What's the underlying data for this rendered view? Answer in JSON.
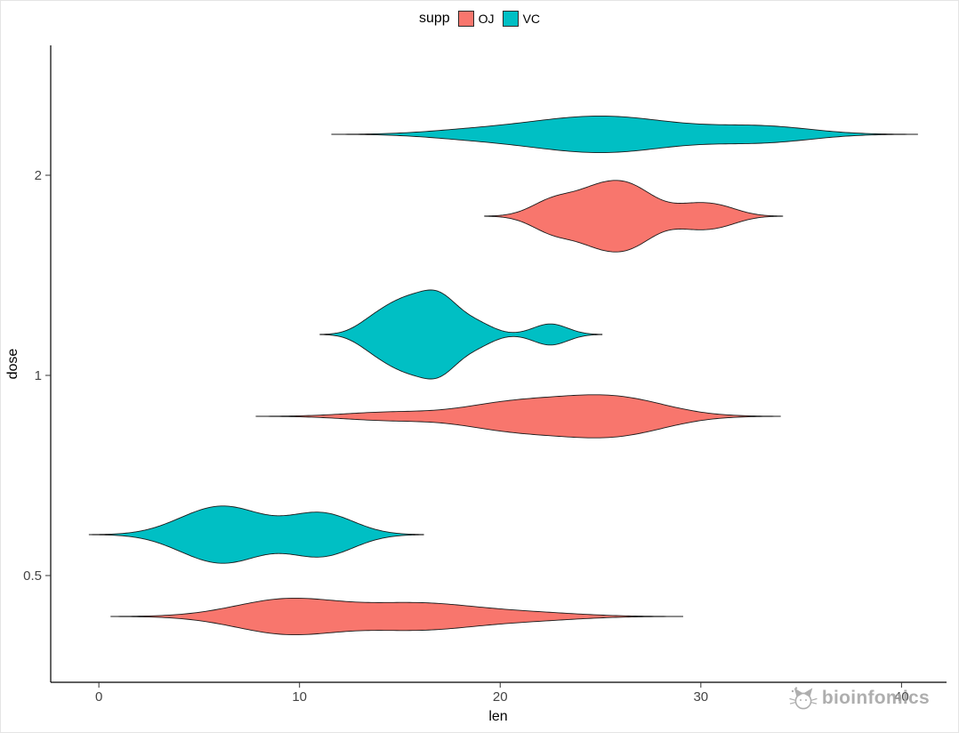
{
  "legend": {
    "title": "supp",
    "entries": [
      {
        "label": "OJ",
        "color": "#F8766D"
      },
      {
        "label": "VC",
        "color": "#00BFC4"
      }
    ]
  },
  "axes": {
    "x": {
      "label": "len",
      "tick_labels": [
        "0",
        "10",
        "20",
        "30",
        "40"
      ]
    },
    "y": {
      "label": "dose",
      "tick_labels": [
        "0.5",
        "1",
        "2"
      ]
    }
  },
  "watermark": {
    "text": "bioinfomics"
  },
  "chart_data": {
    "type": "violin",
    "orientation": "horizontal",
    "title": "",
    "xlabel": "len",
    "ylabel": "dose",
    "xlim": [
      -2.4,
      42.2
    ],
    "x_ticks": [
      0,
      10,
      20,
      30,
      40
    ],
    "categories": [
      "0.5",
      "1",
      "2"
    ],
    "legend_position": "top",
    "grid": false,
    "kde": {
      "bandwidth_rule": "nrd0",
      "cut": 3,
      "trim": false,
      "scale": "area"
    },
    "series": [
      {
        "dose": "0.5",
        "supp": "OJ",
        "color": "#F8766D",
        "values": [
          15.2,
          21.5,
          17.6,
          9.7,
          14.5,
          10.0,
          8.2,
          9.4,
          16.5,
          9.7
        ]
      },
      {
        "dose": "0.5",
        "supp": "VC",
        "color": "#00BFC4",
        "values": [
          4.2,
          11.5,
          7.3,
          5.8,
          6.4,
          10.0,
          11.2,
          11.2,
          5.2,
          7.0
        ]
      },
      {
        "dose": "1",
        "supp": "OJ",
        "color": "#F8766D",
        "values": [
          19.7,
          23.3,
          23.6,
          26.4,
          20.0,
          25.2,
          25.8,
          21.2,
          14.5,
          27.3
        ]
      },
      {
        "dose": "1",
        "supp": "VC",
        "color": "#00BFC4",
        "values": [
          16.5,
          16.5,
          15.2,
          17.3,
          22.5,
          17.3,
          13.6,
          14.5,
          18.8,
          15.5
        ]
      },
      {
        "dose": "2",
        "supp": "OJ",
        "color": "#F8766D",
        "values": [
          25.5,
          26.4,
          22.4,
          24.5,
          24.8,
          30.9,
          26.4,
          27.3,
          29.4,
          23.0
        ]
      },
      {
        "dose": "2",
        "supp": "VC",
        "color": "#00BFC4",
        "values": [
          23.6,
          18.5,
          33.9,
          25.5,
          26.4,
          32.5,
          26.7,
          21.5,
          23.3,
          29.5
        ]
      }
    ]
  }
}
